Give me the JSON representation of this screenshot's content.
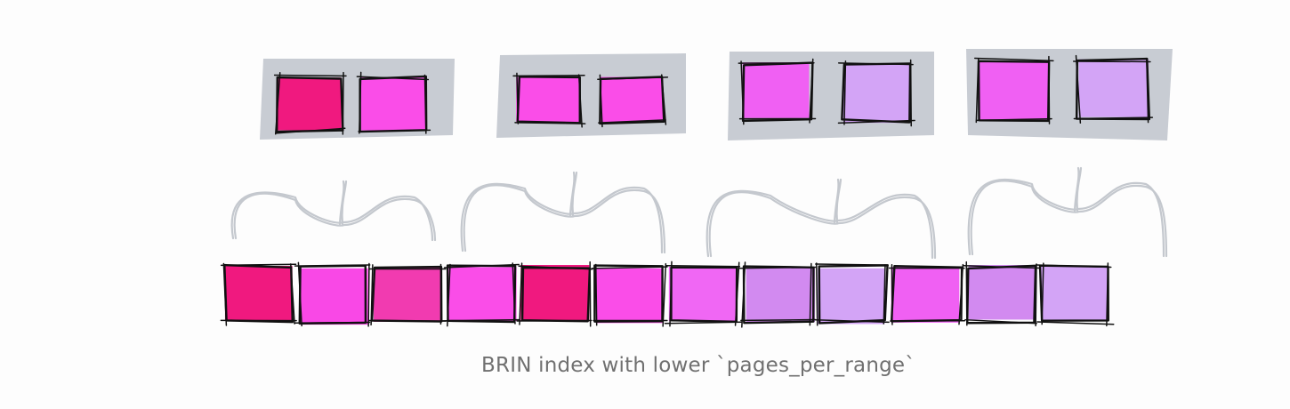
{
  "caption": "BRIN index with lower `pages_per_range`",
  "colors": {
    "panel": "#c8ccd3",
    "brace": "#c4c8ce",
    "outline": "#111111",
    "caption": "#707070",
    "shades": [
      "#f0197f",
      "#fa4de8",
      "#f64bd4",
      "#f67ef2",
      "#c887f2",
      "#d3a4f6"
    ]
  },
  "diagram": {
    "index_ranges": [
      {
        "squares": [
          "#f0197f",
          "#fa4de8"
        ]
      },
      {
        "squares": [
          "#fa4de8",
          "#fa4de8"
        ]
      },
      {
        "squares": [
          "#f060f3",
          "#d3a4f6"
        ]
      },
      {
        "squares": [
          "#f060f3",
          "#d3a4f6"
        ]
      }
    ],
    "pages": [
      "#f0197f",
      "#f948e6",
      "#f13bb0",
      "#fa4de8",
      "#f0197f",
      "#fa4de8",
      "#f067f4",
      "#d28af0",
      "#d3a4f6",
      "#f060f3",
      "#d28af0",
      "#d3a4f6"
    ],
    "pages_per_range": 3
  }
}
